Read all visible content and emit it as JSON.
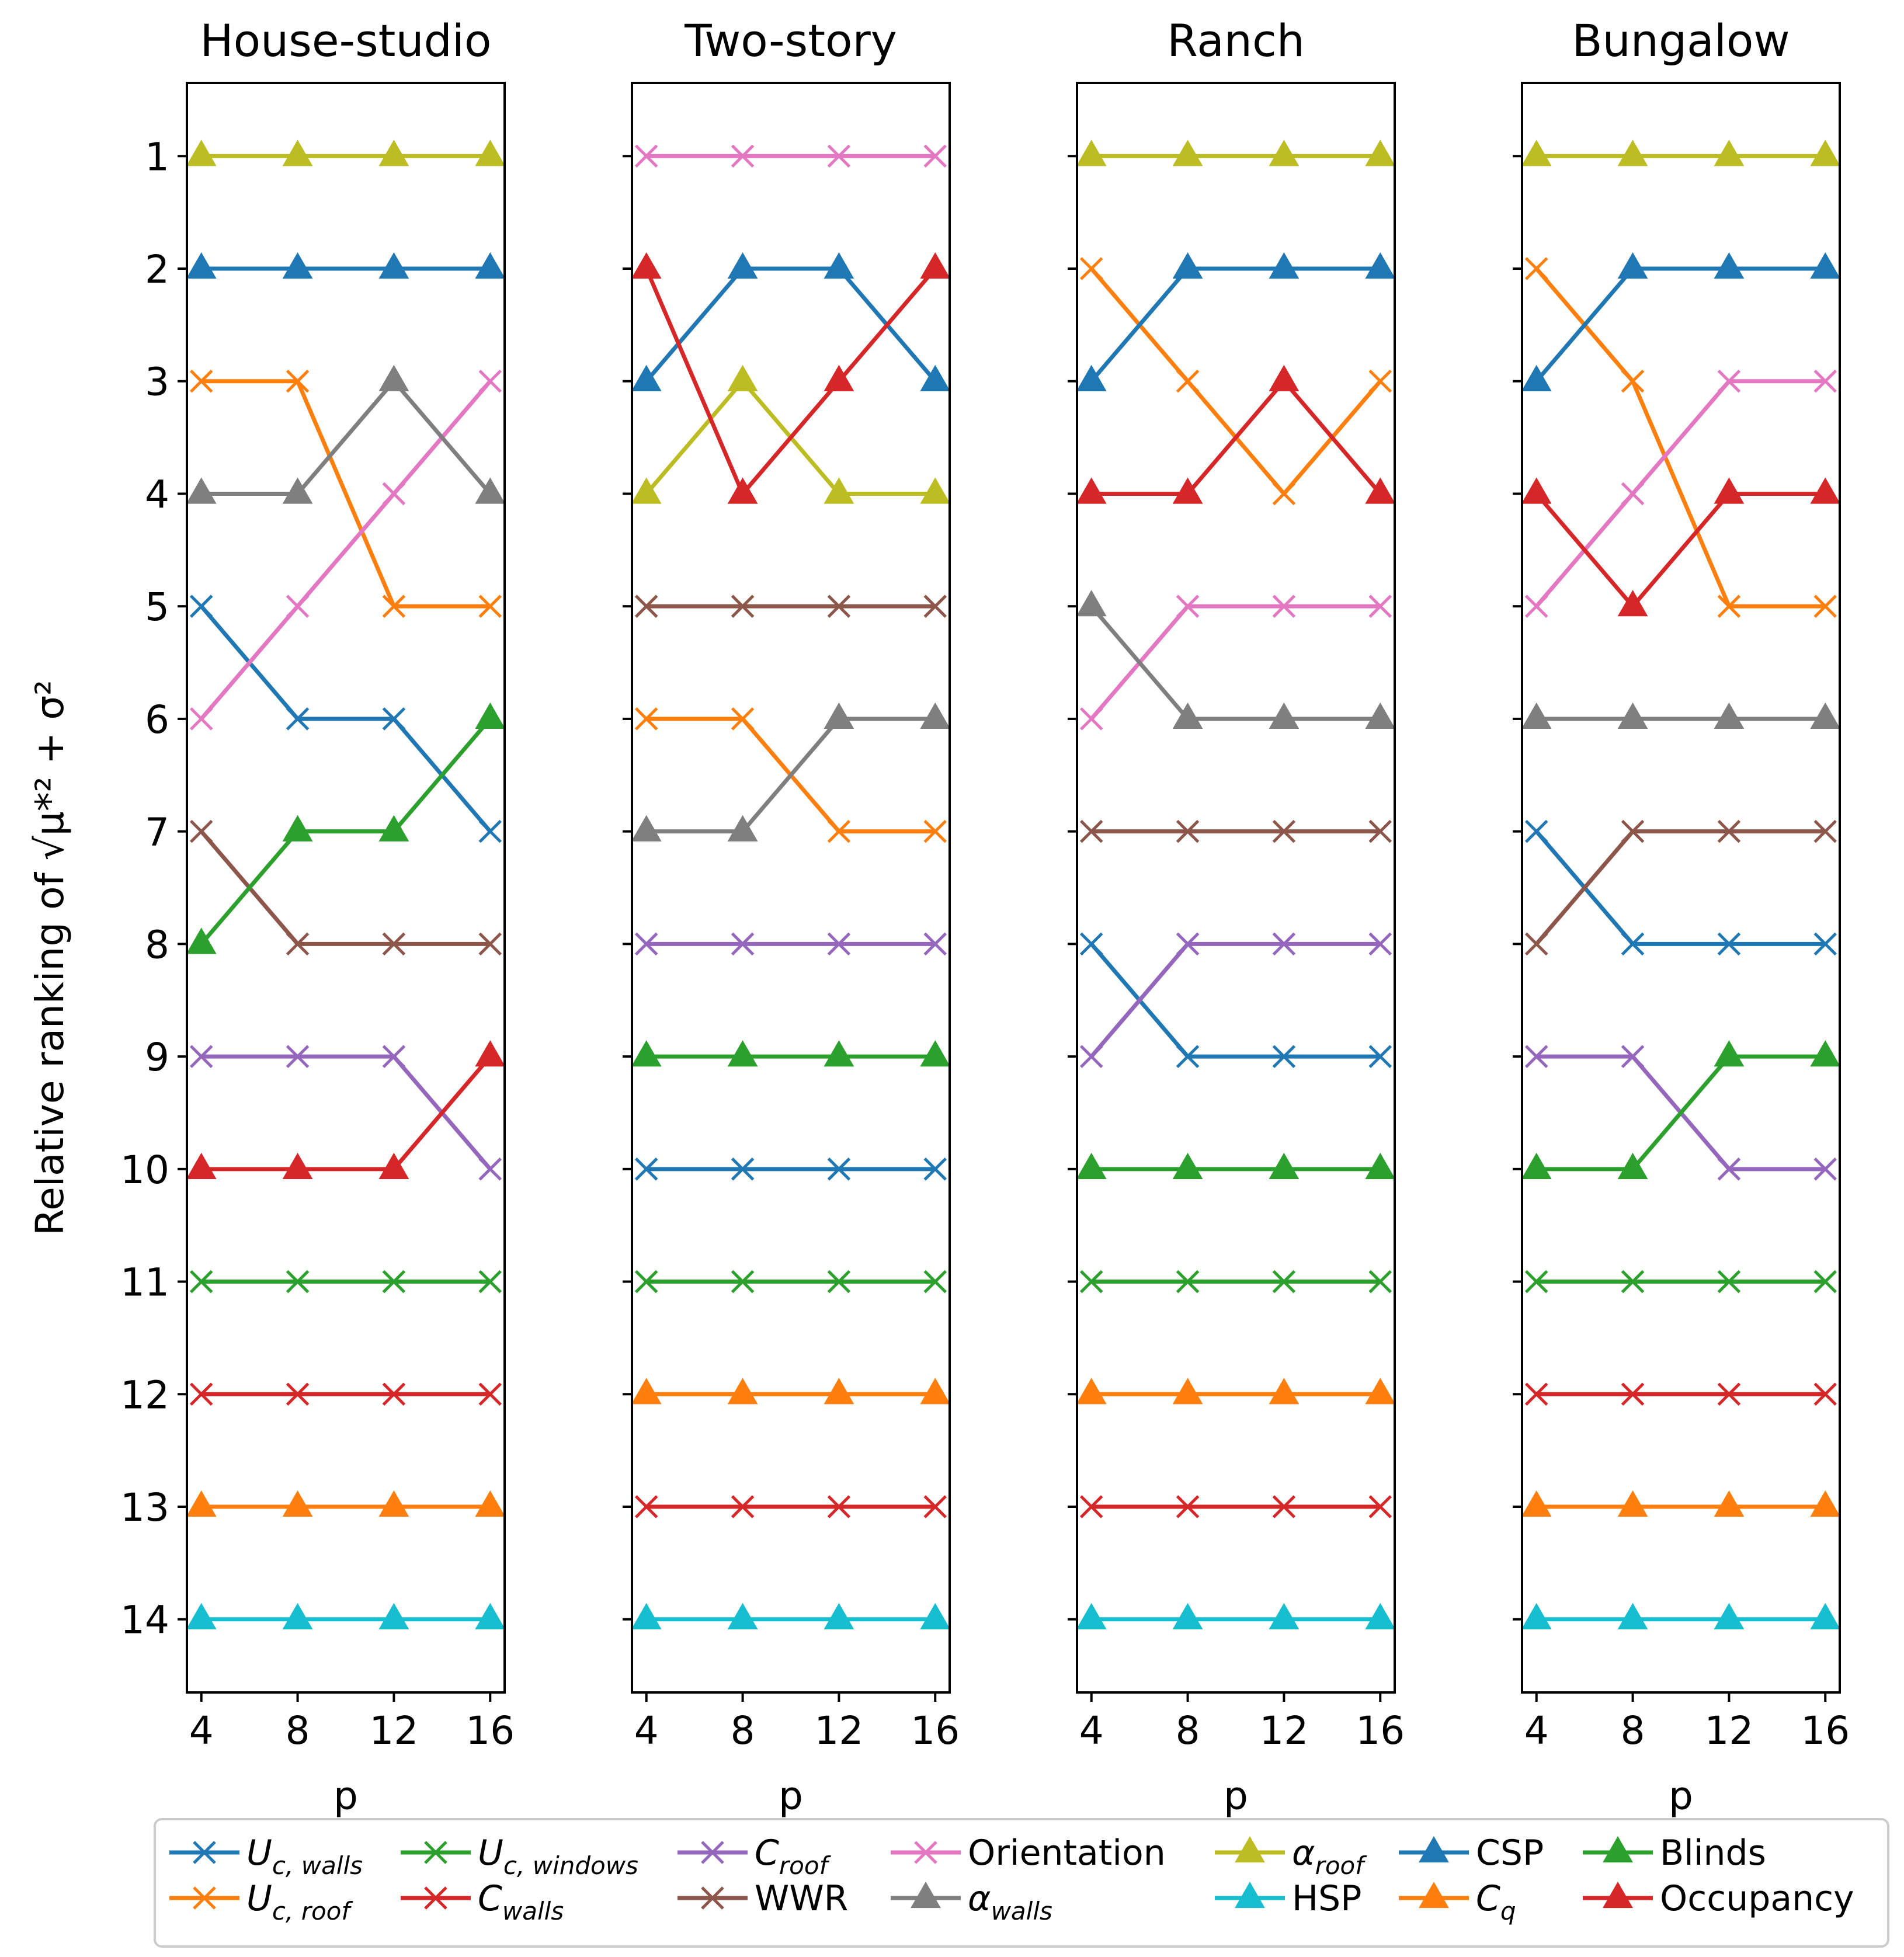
{
  "chart_data": {
    "type": "line",
    "ylabel": "Relative ranking of √μ*² + σ²",
    "x": [
      4,
      8,
      12,
      16
    ],
    "x_ticks": [
      "4",
      "8",
      "12",
      "16"
    ],
    "y_ticks": [
      "1",
      "2",
      "3",
      "4",
      "5",
      "6",
      "7",
      "8",
      "9",
      "10",
      "11",
      "12",
      "13",
      "14"
    ],
    "ylim": [
      14.65,
      0.35
    ],
    "xlim": [
      3.4,
      16.6
    ],
    "legend": {
      "placement": "bottom-center",
      "entries": [
        {
          "key": "Uc_walls",
          "main": "U",
          "sub": "c, walls",
          "italic_main": true,
          "color": "#1f77b4",
          "marker": "x"
        },
        {
          "key": "Uc_roof",
          "main": "U",
          "sub": "c, roof",
          "italic_main": true,
          "color": "#ff7f0e",
          "marker": "x"
        },
        {
          "key": "Uc_windows",
          "main": "U",
          "sub": "c, windows",
          "italic_main": true,
          "color": "#2ca02c",
          "marker": "x"
        },
        {
          "key": "C_walls",
          "main": "C",
          "sub": "walls",
          "italic_main": true,
          "color": "#d62728",
          "marker": "x"
        },
        {
          "key": "C_roof",
          "main": "C",
          "sub": "roof",
          "italic_main": true,
          "color": "#9467bd",
          "marker": "x"
        },
        {
          "key": "WWR",
          "main": "WWR",
          "sub": "",
          "italic_main": false,
          "color": "#8c564b",
          "marker": "x"
        },
        {
          "key": "Orientation",
          "main": "Orientation",
          "sub": "",
          "italic_main": false,
          "color": "#e377c2",
          "marker": "x"
        },
        {
          "key": "alpha_walls",
          "main": "α",
          "sub": "walls",
          "italic_main": true,
          "color": "#7f7f7f",
          "marker": "triangle"
        },
        {
          "key": "alpha_roof",
          "main": "α",
          "sub": "roof",
          "italic_main": true,
          "color": "#bcbd22",
          "marker": "triangle"
        },
        {
          "key": "HSP",
          "main": "HSP",
          "sub": "",
          "italic_main": false,
          "color": "#17becf",
          "marker": "triangle"
        },
        {
          "key": "CSP",
          "main": "CSP",
          "sub": "",
          "italic_main": false,
          "color": "#1f77b4",
          "marker": "triangle"
        },
        {
          "key": "Cq",
          "main": "C",
          "sub": "q",
          "italic_main": true,
          "color": "#ff7f0e",
          "marker": "triangle"
        },
        {
          "key": "Blinds",
          "main": "Blinds",
          "sub": "",
          "italic_main": false,
          "color": "#2ca02c",
          "marker": "triangle"
        },
        {
          "key": "Occupancy",
          "main": "Occupancy",
          "sub": "",
          "italic_main": false,
          "color": "#d62728",
          "marker": "triangle"
        }
      ]
    },
    "panels": [
      {
        "title": "House-studio",
        "xlabel": "p",
        "series": {
          "Uc_walls": [
            5,
            6,
            6,
            7
          ],
          "Uc_roof": [
            3,
            3,
            5,
            5
          ],
          "Uc_windows": [
            11,
            11,
            11,
            11
          ],
          "C_walls": [
            12,
            12,
            12,
            12
          ],
          "C_roof": [
            9,
            9,
            9,
            10
          ],
          "WWR": [
            7,
            8,
            8,
            8
          ],
          "Orientation": [
            6,
            5,
            4,
            3
          ],
          "alpha_walls": [
            4,
            4,
            3,
            4
          ],
          "alpha_roof": [
            1,
            1,
            1,
            1
          ],
          "HSP": [
            14,
            14,
            14,
            14
          ],
          "CSP": [
            2,
            2,
            2,
            2
          ],
          "Cq": [
            13,
            13,
            13,
            13
          ],
          "Blinds": [
            8,
            7,
            7,
            6
          ],
          "Occupancy": [
            10,
            10,
            10,
            9
          ]
        }
      },
      {
        "title": "Two-story",
        "xlabel": "p",
        "series": {
          "Uc_walls": [
            10,
            10,
            10,
            10
          ],
          "Uc_roof": [
            6,
            6,
            7,
            7
          ],
          "Uc_windows": [
            11,
            11,
            11,
            11
          ],
          "C_walls": [
            13,
            13,
            13,
            13
          ],
          "C_roof": [
            8,
            8,
            8,
            8
          ],
          "WWR": [
            5,
            5,
            5,
            5
          ],
          "Orientation": [
            1,
            1,
            1,
            1
          ],
          "alpha_walls": [
            7,
            7,
            6,
            6
          ],
          "alpha_roof": [
            4,
            3,
            4,
            4
          ],
          "HSP": [
            14,
            14,
            14,
            14
          ],
          "CSP": [
            3,
            2,
            2,
            3
          ],
          "Cq": [
            12,
            12,
            12,
            12
          ],
          "Blinds": [
            9,
            9,
            9,
            9
          ],
          "Occupancy": [
            2,
            4,
            3,
            2
          ]
        }
      },
      {
        "title": "Ranch",
        "xlabel": "p",
        "series": {
          "Uc_walls": [
            8,
            9,
            9,
            9
          ],
          "Uc_roof": [
            2,
            3,
            4,
            3
          ],
          "Uc_windows": [
            11,
            11,
            11,
            11
          ],
          "C_walls": [
            13,
            13,
            13,
            13
          ],
          "C_roof": [
            9,
            8,
            8,
            8
          ],
          "WWR": [
            7,
            7,
            7,
            7
          ],
          "Orientation": [
            6,
            5,
            5,
            5
          ],
          "alpha_walls": [
            5,
            6,
            6,
            6
          ],
          "alpha_roof": [
            1,
            1,
            1,
            1
          ],
          "HSP": [
            14,
            14,
            14,
            14
          ],
          "CSP": [
            3,
            2,
            2,
            2
          ],
          "Cq": [
            12,
            12,
            12,
            12
          ],
          "Blinds": [
            10,
            10,
            10,
            10
          ],
          "Occupancy": [
            4,
            4,
            3,
            4
          ]
        }
      },
      {
        "title": "Bungalow",
        "xlabel": "p",
        "series": {
          "Uc_walls": [
            7,
            8,
            8,
            8
          ],
          "Uc_roof": [
            2,
            3,
            5,
            5
          ],
          "Uc_windows": [
            11,
            11,
            11,
            11
          ],
          "C_walls": [
            12,
            12,
            12,
            12
          ],
          "C_roof": [
            9,
            9,
            10,
            10
          ],
          "WWR": [
            8,
            7,
            7,
            7
          ],
          "Orientation": [
            5,
            4,
            3,
            3
          ],
          "alpha_walls": [
            6,
            6,
            6,
            6
          ],
          "alpha_roof": [
            1,
            1,
            1,
            1
          ],
          "HSP": [
            14,
            14,
            14,
            14
          ],
          "CSP": [
            3,
            2,
            2,
            2
          ],
          "Cq": [
            13,
            13,
            13,
            13
          ],
          "Blinds": [
            10,
            10,
            9,
            9
          ],
          "Occupancy": [
            4,
            5,
            4,
            4
          ]
        }
      }
    ]
  }
}
